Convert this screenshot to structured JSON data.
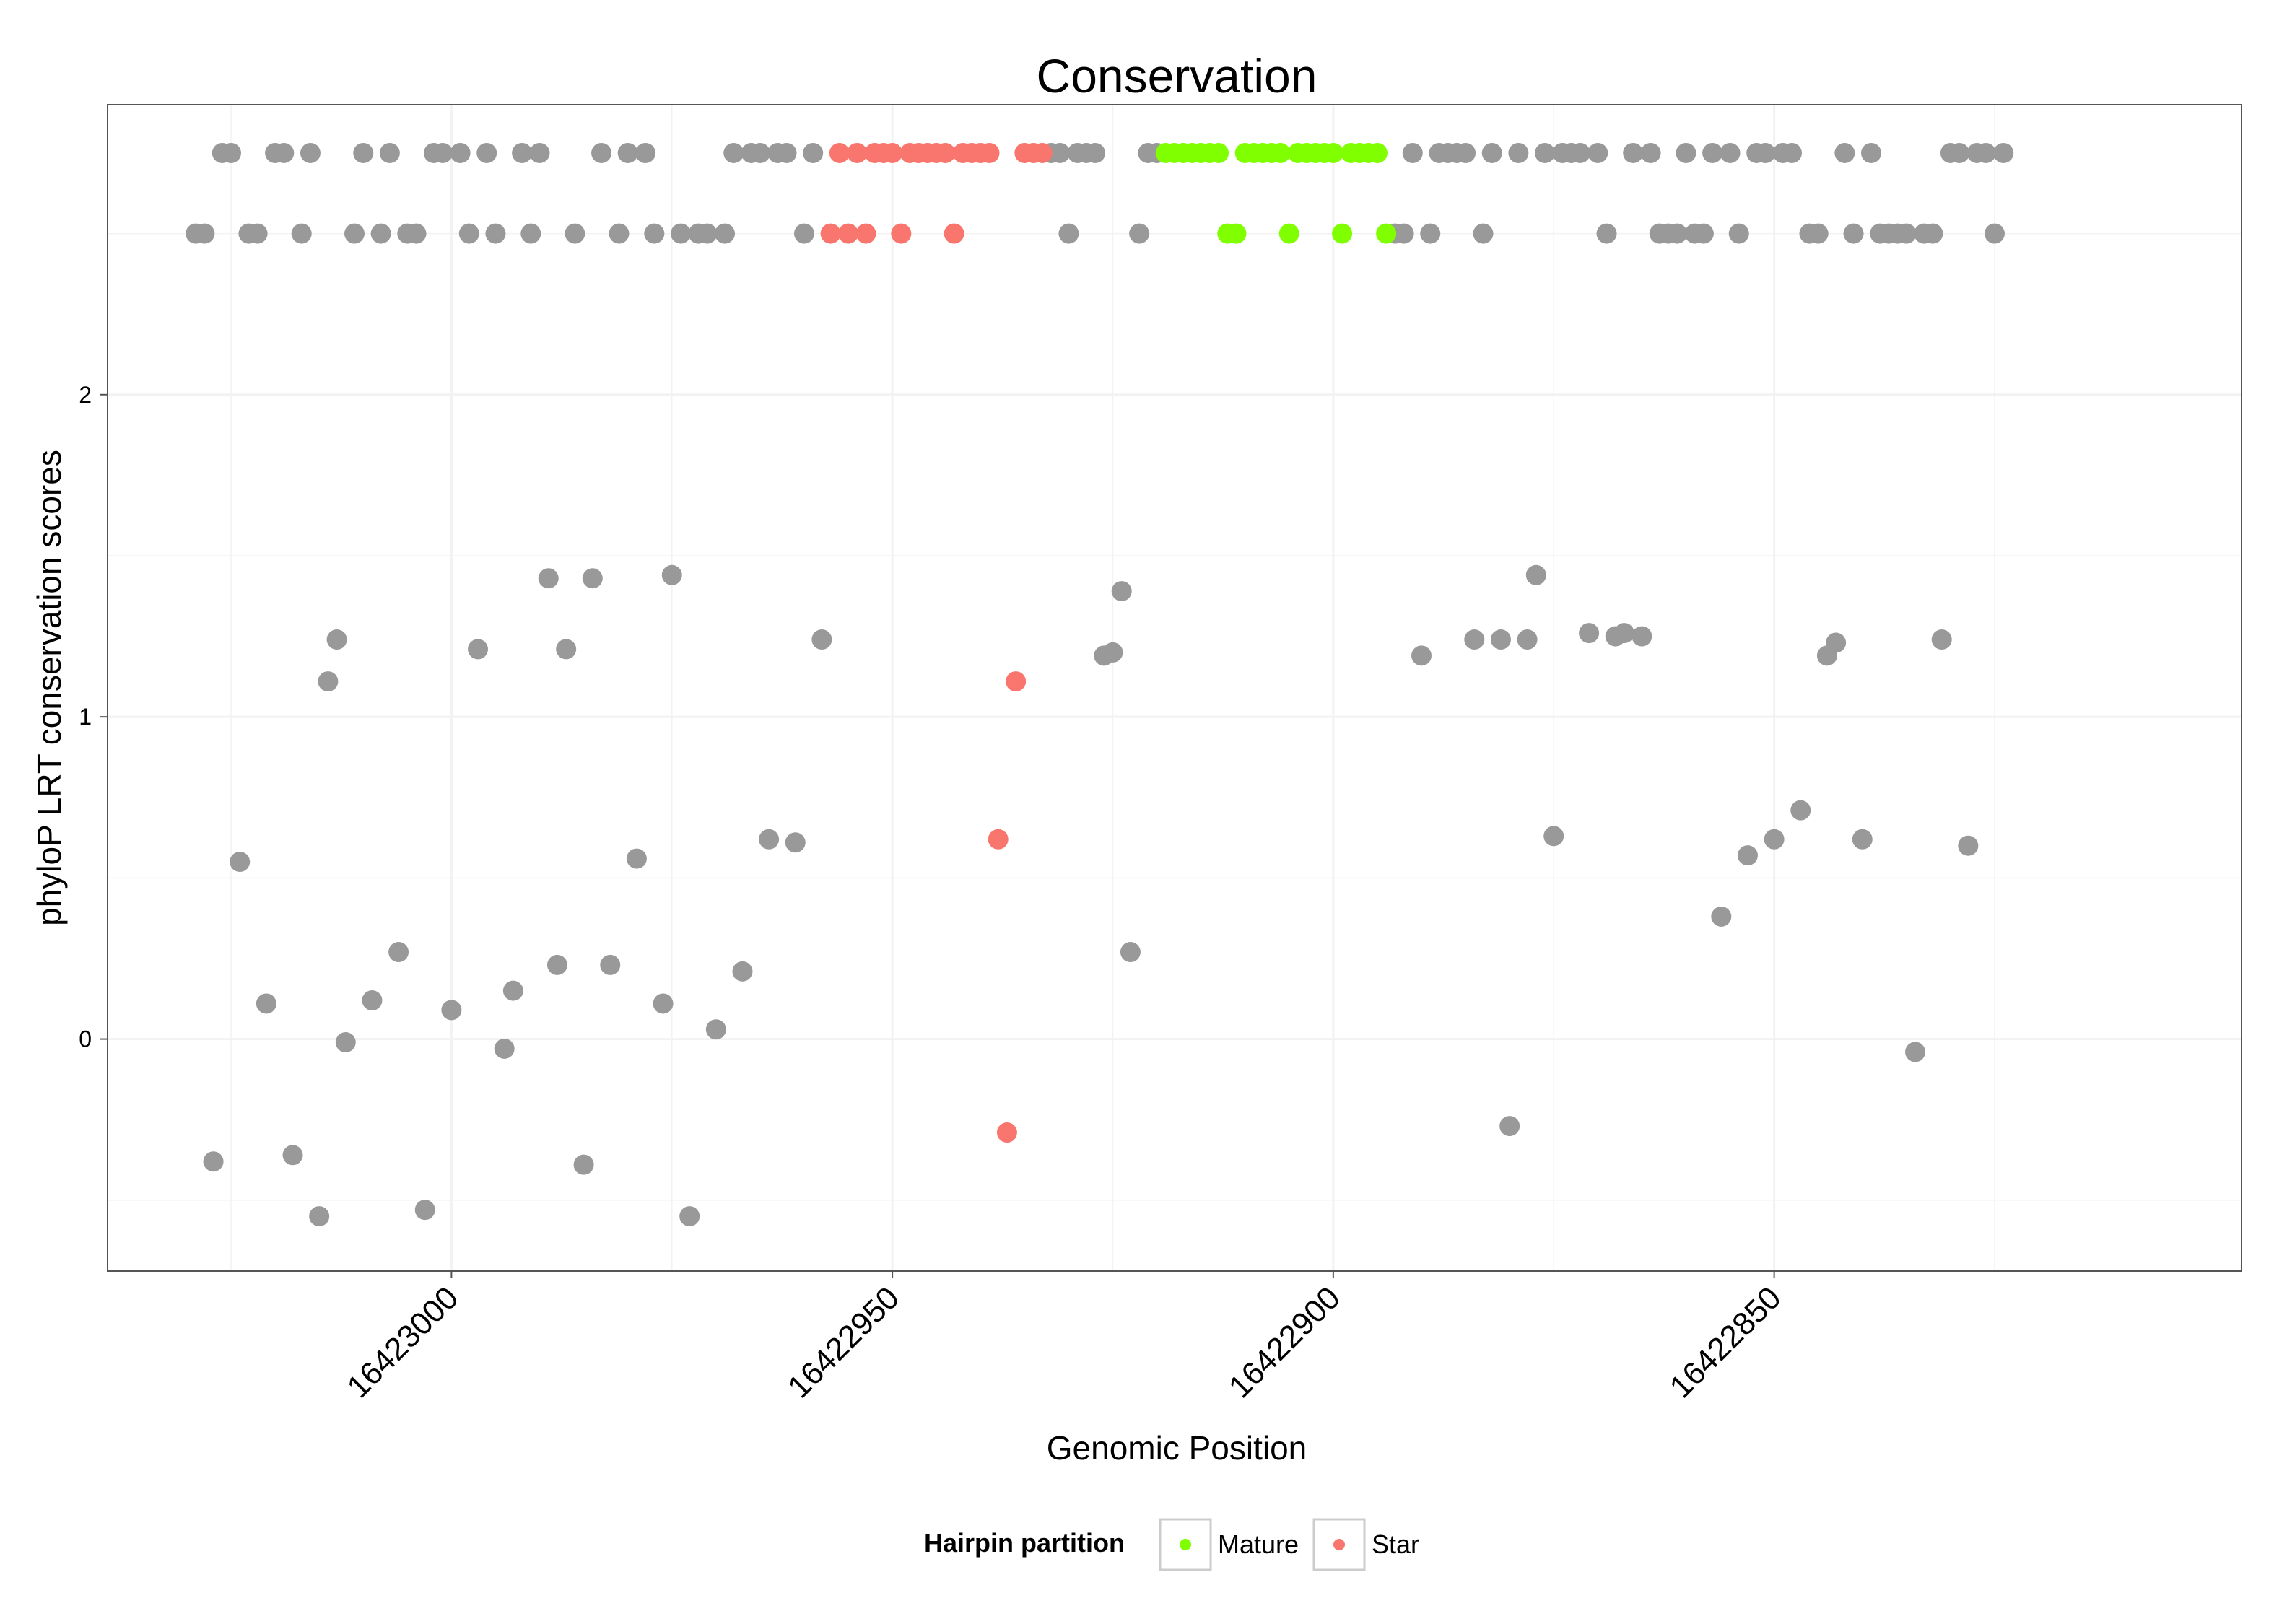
{
  "chart_data": {
    "type": "scatter",
    "title": "Conservation",
    "xlabel": "Genomic Position",
    "ylabel": "phyloP LRT conservation scores",
    "x_reversed": true,
    "xlim": [
      16423039,
      16422797
    ],
    "ylim": [
      -0.72,
      2.9
    ],
    "x_ticks": [
      16423000,
      16422950,
      16422900,
      16422850
    ],
    "x_tick_labels": [
      "16423000",
      "16422950",
      "16422900",
      "16422850"
    ],
    "y_ticks": [
      0,
      1,
      2
    ],
    "y_tick_labels": [
      "0",
      "1",
      "2"
    ],
    "grid": true,
    "colors": {
      "Other": "#999999",
      "Mature": "#7FFF00",
      "Star": "#F8766D",
      "panel_border": "#555555",
      "grid": "#F2F2F2"
    },
    "legend": {
      "title": "Hairpin partition",
      "position": "bottom",
      "entries": [
        {
          "label": "Mature",
          "color": "#7FFF00"
        },
        {
          "label": "Star",
          "color": "#F8766D"
        }
      ]
    },
    "series": [
      {
        "name": "Other",
        "points": [
          [
            16423029,
            2.5
          ],
          [
            16423028,
            2.5
          ],
          [
            16423027,
            -0.38
          ],
          [
            16423026,
            2.75
          ],
          [
            16423025,
            2.75
          ],
          [
            16423024,
            0.55
          ],
          [
            16423023,
            2.5
          ],
          [
            16423022,
            2.5
          ],
          [
            16423021,
            0.11
          ],
          [
            16423020,
            2.75
          ],
          [
            16423019,
            2.75
          ],
          [
            16423018,
            -0.36
          ],
          [
            16423017,
            2.5
          ],
          [
            16423016,
            2.75
          ],
          [
            16423015,
            -0.55
          ],
          [
            16423014,
            1.11
          ],
          [
            16423013,
            1.24
          ],
          [
            16423012,
            -0.01
          ],
          [
            16423011,
            2.5
          ],
          [
            16423010,
            2.75
          ],
          [
            16423009,
            0.12
          ],
          [
            16423008,
            2.5
          ],
          [
            16423007,
            2.75
          ],
          [
            16423006,
            0.27
          ],
          [
            16423005,
            2.5
          ],
          [
            16423004,
            2.5
          ],
          [
            16423003,
            -0.53
          ],
          [
            16423002,
            2.75
          ],
          [
            16423001,
            2.75
          ],
          [
            16423000,
            0.09
          ],
          [
            16422999,
            2.75
          ],
          [
            16422998,
            2.5
          ],
          [
            16422997,
            1.21
          ],
          [
            16422996,
            2.75
          ],
          [
            16422995,
            2.5
          ],
          [
            16422994,
            -0.03
          ],
          [
            16422993,
            0.15
          ],
          [
            16422992,
            2.75
          ],
          [
            16422991,
            2.5
          ],
          [
            16422990,
            2.75
          ],
          [
            16422989,
            1.43
          ],
          [
            16422988,
            0.23
          ],
          [
            16422987,
            1.21
          ],
          [
            16422986,
            2.5
          ],
          [
            16422985,
            -0.39
          ],
          [
            16422984,
            1.43
          ],
          [
            16422983,
            2.75
          ],
          [
            16422982,
            0.23
          ],
          [
            16422981,
            2.5
          ],
          [
            16422980,
            2.75
          ],
          [
            16422979,
            0.56
          ],
          [
            16422978,
            2.75
          ],
          [
            16422977,
            2.5
          ],
          [
            16422976,
            0.11
          ],
          [
            16422975,
            1.44
          ],
          [
            16422974,
            2.5
          ],
          [
            16422973,
            -0.55
          ],
          [
            16422972,
            2.5
          ],
          [
            16422971,
            2.5
          ],
          [
            16422970,
            0.03
          ],
          [
            16422969,
            2.5
          ],
          [
            16422968,
            2.75
          ],
          [
            16422967,
            0.21
          ],
          [
            16422966,
            2.75
          ],
          [
            16422965,
            2.75
          ],
          [
            16422964,
            0.62
          ],
          [
            16422963,
            2.75
          ],
          [
            16422962,
            2.75
          ],
          [
            16422961,
            0.61
          ],
          [
            16422960,
            2.5
          ],
          [
            16422959,
            2.75
          ],
          [
            16422958,
            1.24
          ],
          [
            16422932,
            2.75
          ],
          [
            16422931,
            2.75
          ],
          [
            16422930,
            2.5
          ],
          [
            16422929,
            2.75
          ],
          [
            16422928,
            2.75
          ],
          [
            16422927,
            2.75
          ],
          [
            16422926,
            1.19
          ],
          [
            16422925,
            1.2
          ],
          [
            16422924,
            1.39
          ],
          [
            16422923,
            0.27
          ],
          [
            16422922,
            2.5
          ],
          [
            16422921,
            2.75
          ],
          [
            16422920,
            2.75
          ],
          [
            16422893,
            2.5
          ],
          [
            16422892,
            2.5
          ],
          [
            16422891,
            2.75
          ],
          [
            16422890,
            1.19
          ],
          [
            16422889,
            2.5
          ],
          [
            16422888,
            2.75
          ],
          [
            16422887,
            2.75
          ],
          [
            16422886,
            2.75
          ],
          [
            16422885,
            2.75
          ],
          [
            16422884,
            1.24
          ],
          [
            16422883,
            2.5
          ],
          [
            16422882,
            2.75
          ],
          [
            16422881,
            1.24
          ],
          [
            16422880,
            -0.27
          ],
          [
            16422879,
            2.75
          ],
          [
            16422878,
            1.24
          ],
          [
            16422877,
            1.44
          ],
          [
            16422876,
            2.75
          ],
          [
            16422875,
            0.63
          ],
          [
            16422874,
            2.75
          ],
          [
            16422873,
            2.75
          ],
          [
            16422872,
            2.75
          ],
          [
            16422871,
            1.26
          ],
          [
            16422870,
            2.75
          ],
          [
            16422869,
            2.5
          ],
          [
            16422868,
            1.25
          ],
          [
            16422867,
            1.26
          ],
          [
            16422866,
            2.75
          ],
          [
            16422865,
            1.25
          ],
          [
            16422864,
            2.75
          ],
          [
            16422863,
            2.5
          ],
          [
            16422862,
            2.5
          ],
          [
            16422861,
            2.5
          ],
          [
            16422860,
            2.75
          ],
          [
            16422859,
            2.5
          ],
          [
            16422858,
            2.5
          ],
          [
            16422857,
            2.75
          ],
          [
            16422856,
            0.38
          ],
          [
            16422855,
            2.75
          ],
          [
            16422854,
            2.5
          ],
          [
            16422853,
            0.57
          ],
          [
            16422852,
            2.75
          ],
          [
            16422851,
            2.75
          ],
          [
            16422850,
            0.62
          ],
          [
            16422849,
            2.75
          ],
          [
            16422848,
            2.75
          ],
          [
            16422847,
            0.71
          ],
          [
            16422846,
            2.5
          ],
          [
            16422845,
            2.5
          ],
          [
            16422844,
            1.19
          ],
          [
            16422843,
            1.23
          ],
          [
            16422842,
            2.75
          ],
          [
            16422841,
            2.5
          ],
          [
            16422840,
            0.62
          ],
          [
            16422839,
            2.75
          ],
          [
            16422838,
            2.5
          ],
          [
            16422837,
            2.5
          ],
          [
            16422836,
            2.5
          ],
          [
            16422835,
            2.5
          ],
          [
            16422834,
            -0.04
          ],
          [
            16422833,
            2.5
          ],
          [
            16422832,
            2.5
          ],
          [
            16422831,
            1.24
          ],
          [
            16422830,
            2.75
          ],
          [
            16422829,
            2.75
          ],
          [
            16422828,
            0.6
          ],
          [
            16422827,
            2.75
          ],
          [
            16422826,
            2.75
          ],
          [
            16422825,
            2.5
          ],
          [
            16422824,
            2.75
          ]
        ]
      },
      {
        "name": "Star",
        "points": [
          [
            16422957,
            2.5
          ],
          [
            16422956,
            2.75
          ],
          [
            16422955,
            2.5
          ],
          [
            16422954,
            2.75
          ],
          [
            16422953,
            2.5
          ],
          [
            16422952,
            2.75
          ],
          [
            16422951,
            2.75
          ],
          [
            16422950,
            2.75
          ],
          [
            16422949,
            2.5
          ],
          [
            16422948,
            2.75
          ],
          [
            16422947,
            2.75
          ],
          [
            16422946,
            2.75
          ],
          [
            16422945,
            2.75
          ],
          [
            16422944,
            2.75
          ],
          [
            16422943,
            2.5
          ],
          [
            16422942,
            2.75
          ],
          [
            16422941,
            2.75
          ],
          [
            16422940,
            2.75
          ],
          [
            16422939,
            2.75
          ],
          [
            16422938,
            0.62
          ],
          [
            16422937,
            -0.29
          ],
          [
            16422936,
            1.11
          ],
          [
            16422935,
            2.75
          ],
          [
            16422934,
            2.75
          ],
          [
            16422933,
            2.75
          ]
        ]
      },
      {
        "name": "Mature",
        "points": [
          [
            16422919,
            2.75
          ],
          [
            16422918,
            2.75
          ],
          [
            16422917,
            2.75
          ],
          [
            16422916,
            2.75
          ],
          [
            16422915,
            2.75
          ],
          [
            16422914,
            2.75
          ],
          [
            16422913,
            2.75
          ],
          [
            16422912,
            2.5
          ],
          [
            16422911,
            2.5
          ],
          [
            16422910,
            2.75
          ],
          [
            16422909,
            2.75
          ],
          [
            16422908,
            2.75
          ],
          [
            16422907,
            2.75
          ],
          [
            16422906,
            2.75
          ],
          [
            16422905,
            2.5
          ],
          [
            16422904,
            2.75
          ],
          [
            16422903,
            2.75
          ],
          [
            16422902,
            2.75
          ],
          [
            16422901,
            2.75
          ],
          [
            16422900,
            2.75
          ],
          [
            16422899,
            2.5
          ],
          [
            16422898,
            2.75
          ],
          [
            16422897,
            2.75
          ],
          [
            16422896,
            2.75
          ],
          [
            16422895,
            2.75
          ],
          [
            16422894,
            2.5
          ]
        ]
      }
    ]
  }
}
